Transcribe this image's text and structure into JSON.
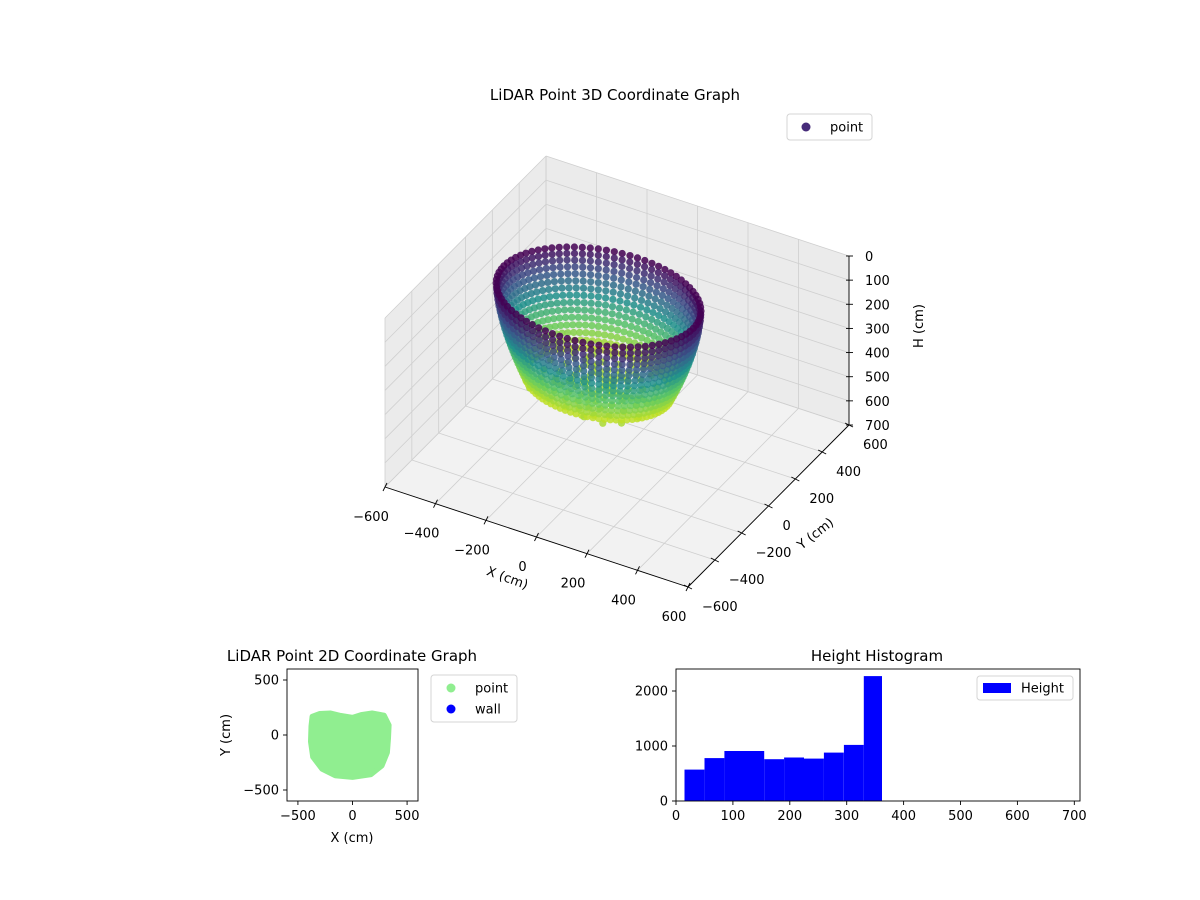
{
  "colors": {
    "viridis_dark": "#440154",
    "viridis_mid": "#21918c",
    "viridis_light": "#bddf26",
    "point_2d": "#90ee90",
    "wall_2d": "#0000ff",
    "histogram": "#0000ff",
    "pane_light": "#f2f2f2",
    "pane_mid": "#ebebeb",
    "grid": "#cfcfcf"
  },
  "chart_data": [
    {
      "id": "lidar-3d",
      "type": "scatter",
      "projection": "3d",
      "title": "LiDAR Point 3D Coordinate Graph",
      "xlabel": "X (cm)",
      "ylabel": "Y (cm)",
      "zlabel": "H (cm)",
      "xlim": [
        -600,
        600
      ],
      "ylim": [
        -600,
        600
      ],
      "zlim": [
        0,
        700
      ],
      "z_inverted": true,
      "x_ticks": [
        "−600",
        "−400",
        "−200",
        "0",
        "200",
        "400",
        "600"
      ],
      "y_ticks": [
        "−600",
        "−400",
        "−200",
        "0",
        "200",
        "400",
        "600"
      ],
      "z_ticks": [
        "0",
        "100",
        "200",
        "300",
        "400",
        "500",
        "600",
        "700"
      ],
      "grid": true,
      "colormap": "viridis",
      "legend": {
        "position": "top-right",
        "entries": [
          "point"
        ]
      },
      "shape": {
        "description_free": true,
        "x_range": [
          -400,
          350
        ],
        "y_range": [
          -380,
          200
        ],
        "h_range": [
          0,
          360
        ],
        "rim_height": 0,
        "floor_height": 360
      }
    },
    {
      "id": "lidar-2d",
      "type": "scatter",
      "title": "LiDAR Point 2D Coordinate Graph",
      "xlabel": "X (cm)",
      "ylabel": "Y (cm)",
      "xlim": [
        -600,
        600
      ],
      "ylim": [
        -600,
        600
      ],
      "x_ticks": [
        "−500",
        "0",
        "500"
      ],
      "y_ticks": [
        "−500",
        "0",
        "500"
      ],
      "legend": {
        "position": "outside-right",
        "entries": [
          "point",
          "wall"
        ]
      },
      "series": [
        {
          "name": "point",
          "outline": [
            [
              -370,
              170
            ],
            [
              -300,
              195
            ],
            [
              -200,
              200
            ],
            [
              -120,
              180
            ],
            [
              0,
              160
            ],
            [
              80,
              185
            ],
            [
              180,
              200
            ],
            [
              290,
              180
            ],
            [
              335,
              90
            ],
            [
              330,
              -30
            ],
            [
              320,
              -160
            ],
            [
              270,
              -280
            ],
            [
              170,
              -360
            ],
            [
              0,
              -385
            ],
            [
              -160,
              -370
            ],
            [
              -280,
              -310
            ],
            [
              -365,
              -200
            ],
            [
              -385,
              -60
            ],
            [
              -380,
              80
            ]
          ]
        },
        {
          "name": "wall",
          "points": []
        }
      ]
    },
    {
      "id": "height-histogram",
      "type": "bar",
      "title": "Height Histogram",
      "xlim": [
        0,
        710
      ],
      "ylim": [
        0,
        2400
      ],
      "x_ticks": [
        "0",
        "100",
        "200",
        "300",
        "400",
        "500",
        "600",
        "700"
      ],
      "y_ticks": [
        "0",
        "1000",
        "2000"
      ],
      "legend": {
        "position": "top-right",
        "entries": [
          "Height"
        ]
      },
      "bins": [
        {
          "start": 15,
          "end": 50,
          "value": 570
        },
        {
          "start": 50,
          "end": 85,
          "value": 780
        },
        {
          "start": 85,
          "end": 155,
          "value": 910
        },
        {
          "start": 155,
          "end": 190,
          "value": 760
        },
        {
          "start": 190,
          "end": 225,
          "value": 790
        },
        {
          "start": 225,
          "end": 260,
          "value": 770
        },
        {
          "start": 260,
          "end": 295,
          "value": 880
        },
        {
          "start": 295,
          "end": 330,
          "value": 1020
        },
        {
          "start": 330,
          "end": 362,
          "value": 2270
        }
      ]
    }
  ]
}
